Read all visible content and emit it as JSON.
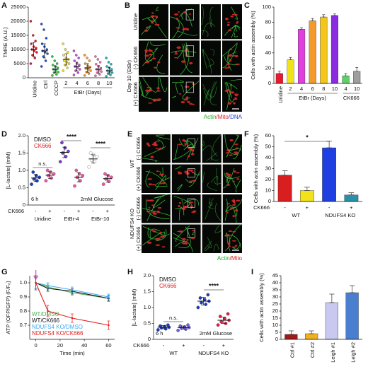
{
  "chart_data": [
    {
      "type": "dot",
      "panel": "A",
      "ylabel": "TMRE (A.U.)",
      "categories": [
        "Uridine",
        "Ctrl",
        "CCCP",
        "2",
        "4",
        "6",
        "8",
        "10"
      ],
      "groups": [
        "EtBr (Days)"
      ],
      "colors": [
        "#e8192c",
        "#1f4fd8",
        "#2ec24a",
        "#f2e21a",
        "#c74fd6",
        "#f39a2b",
        "#e872b8",
        "#26b0b6"
      ],
      "values": [
        [
          5000,
          7000,
          8000,
          9000,
          9500,
          10000,
          10500,
          11000,
          12000,
          13000,
          15000,
          20000
        ],
        [
          4000,
          6000,
          7500,
          8500,
          9000,
          9500,
          10000,
          11000,
          12000,
          14000,
          17000,
          19000
        ],
        [
          800,
          1200,
          1800,
          2000,
          2500,
          3000,
          3500,
          4000,
          4500,
          5000,
          6000,
          7500
        ],
        [
          2500,
          3500,
          4500,
          5000,
          5500,
          6000,
          6500,
          7000,
          8000,
          9000,
          10000,
          12000
        ],
        [
          1000,
          1800,
          2500,
          3000,
          3500,
          4000,
          4500,
          5000,
          6000,
          7000,
          8000,
          9500
        ],
        [
          800,
          1500,
          2000,
          2500,
          3000,
          3300,
          3800,
          4200,
          5000,
          6000,
          7000,
          8000
        ],
        [
          700,
          1200,
          1800,
          2200,
          2600,
          3000,
          3400,
          4000,
          4800,
          5500,
          6500,
          7500
        ],
        [
          500,
          1000,
          1500,
          1800,
          2200,
          2500,
          3000,
          3500,
          4000,
          4800,
          5500,
          7000
        ]
      ],
      "means": [
        10000,
        9500,
        3000,
        6500,
        4000,
        3500,
        3000,
        2500
      ],
      "errors": [
        2500,
        2500,
        1200,
        2000,
        1500,
        1500,
        1300,
        1200
      ],
      "ylim": [
        0,
        25000
      ],
      "yticks": [
        0,
        5000,
        10000,
        15000,
        20000,
        25000
      ]
    },
    {
      "type": "bar",
      "panel": "C",
      "ylabel": "Cells with actin assembly (%)",
      "categories": [
        "Uridine",
        "2",
        "4",
        "6",
        "8",
        "10",
        "4",
        "10"
      ],
      "groups": [
        "EtBr (Days)",
        "CK666"
      ],
      "values": [
        13,
        31,
        71,
        82,
        87,
        89,
        10,
        16
      ],
      "errors": [
        3,
        3,
        2,
        3,
        3,
        2,
        3,
        5
      ],
      "colors": [
        "#e8192c",
        "#f2e21a",
        "#e040e0",
        "#f39a2b",
        "#f5c518",
        "#8a2be2",
        "#5ecf6a",
        "#9e9e9e"
      ],
      "ylim": [
        0,
        100
      ],
      "yticks": [
        0,
        20,
        40,
        60,
        80,
        100
      ]
    },
    {
      "type": "dot",
      "panel": "D",
      "ylabel": "[L-lactate] (mM)",
      "categories": [
        "-",
        "+",
        "-",
        "+",
        "-",
        "+"
      ],
      "row_label": "CK666",
      "groups": [
        "Uridine",
        "EtBr-4",
        "EtBr-10"
      ],
      "legend": [
        {
          "name": "DMSO",
          "color": "#111111"
        },
        {
          "name": "CK666",
          "color": "#e02020"
        }
      ],
      "colors": [
        "#1f3fbf",
        "#e85aa0",
        "#7b3fd0",
        "#e85aa0",
        "#ffffff",
        "#e85aa0"
      ],
      "values": [
        [
          0.6,
          0.7,
          0.75,
          0.8,
          0.85,
          0.95
        ],
        [
          0.7,
          0.78,
          0.85,
          0.9,
          0.95,
          1.0
        ],
        [
          1.25,
          1.4,
          1.5,
          1.55,
          1.65,
          1.8
        ],
        [
          0.55,
          0.7,
          0.8,
          0.85,
          0.9,
          1.0
        ],
        [
          1.1,
          1.25,
          1.3,
          1.4,
          1.45,
          1.5
        ],
        [
          0.6,
          0.68,
          0.75,
          0.8,
          0.85,
          0.9
        ]
      ],
      "means": [
        0.78,
        0.86,
        1.52,
        0.8,
        1.33,
        0.76
      ],
      "errors": [
        0.1,
        0.1,
        0.15,
        0.13,
        0.12,
        0.1
      ],
      "annotations": [
        "n.s.",
        "****",
        "****",
        "6 h",
        "2mM Glucose"
      ],
      "ylim": [
        0,
        2
      ],
      "yticks": [
        0,
        0.5,
        {
          "value": 1,
          "label": "1.0"
        },
        1.5,
        {
          "value": 2,
          "label": "2.0"
        }
      ]
    },
    {
      "type": "bar",
      "panel": "F",
      "ylabel": "Cells with actin assembly (%)",
      "categories": [
        "-",
        "+",
        "-",
        "+"
      ],
      "row_label": "CK666",
      "groups": [
        "WT",
        "NDUFS4 KO"
      ],
      "values": [
        24,
        10,
        49,
        6
      ],
      "errors": [
        4,
        3,
        6,
        2
      ],
      "colors": [
        "#d81e1e",
        "#f2e21a",
        "#1f3fe0",
        "#2a8fa8"
      ],
      "annotations": [
        "*"
      ],
      "ylim": [
        0,
        60
      ],
      "yticks": [
        0,
        10,
        20,
        30,
        40,
        50,
        60
      ]
    },
    {
      "type": "line",
      "panel": "G",
      "ylabel": "ATP (OFP/GFP) (F/F₀)",
      "xlabel": "Time (min)",
      "x": [
        0,
        10,
        30,
        60
      ],
      "series": [
        {
          "name": "WT/DMSO",
          "color": "#4caf50",
          "values": [
            1.0,
            0.97,
            0.93,
            0.89
          ],
          "errors": [
            0.05,
            0.02,
            0.02,
            0.02
          ]
        },
        {
          "name": "WT/CK666",
          "color": "#111111",
          "values": [
            1.0,
            0.96,
            0.94,
            0.89
          ],
          "errors": [
            0.04,
            0.02,
            0.02,
            0.02
          ]
        },
        {
          "name": "NDUFS4 KO/DMSO",
          "color": "#3fa9f5",
          "values": [
            1.0,
            0.98,
            0.95,
            0.9
          ],
          "errors": [
            0.04,
            0.02,
            0.02,
            0.02
          ]
        },
        {
          "name": "NDUFS4 KO/CK666",
          "color": "#e0201e",
          "values": [
            1.0,
            0.8,
            0.75,
            0.7
          ],
          "errors": [
            0.05,
            0.04,
            0.03,
            0.03
          ]
        }
      ],
      "xlim": [
        -5,
        65
      ],
      "xticks": [
        0,
        20,
        40,
        60
      ],
      "ylim": [
        0.6,
        1.05
      ],
      "yticks": [
        0.7,
        0.8,
        0.9,
        {
          "value": 1,
          "label": "1.0"
        }
      ]
    },
    {
      "type": "dot",
      "panel": "H",
      "ylabel": "[L-lactate] (mM)",
      "categories": [
        "-",
        "+",
        "-",
        "+"
      ],
      "row_label": "CK666",
      "groups": [
        "WT",
        "NDUFS4 KO"
      ],
      "legend": [
        {
          "name": "DMSO",
          "color": "#111111"
        },
        {
          "name": "CK666",
          "color": "#e02020"
        }
      ],
      "colors": [
        "#1f3fbf",
        "#7060e0",
        "#1f3fbf",
        "#e02040"
      ],
      "values": [
        [
          0.3,
          0.33,
          0.36,
          0.38,
          0.4,
          0.42,
          0.45
        ],
        [
          0.28,
          0.32,
          0.35,
          0.37,
          0.39,
          0.42,
          0.45
        ],
        [
          1.0,
          1.1,
          1.15,
          1.2,
          1.25,
          1.3,
          1.4
        ],
        [
          0.45,
          0.5,
          0.55,
          0.6,
          0.65,
          0.72,
          0.8
        ]
      ],
      "means": [
        0.38,
        0.37,
        1.2,
        0.6
      ],
      "errors": [
        0.05,
        0.05,
        0.12,
        0.1
      ],
      "annotations": [
        "n.s.",
        "****",
        "6 h",
        "2mM Glucose"
      ],
      "ylim": [
        0,
        2
      ],
      "yticks": [
        0,
        0.5,
        {
          "value": 1,
          "label": "1.0"
        },
        1.5,
        {
          "value": 2,
          "label": "2.0"
        }
      ]
    },
    {
      "type": "bar",
      "panel": "I",
      "ylabel": "Cells with actin assembly (%)",
      "categories": [
        "Ctrl #1",
        "Ctrl #2",
        "Leigh #1",
        "Leigh #2"
      ],
      "values": [
        3.5,
        4,
        26,
        33
      ],
      "errors": [
        2.5,
        2,
        6,
        5
      ],
      "colors": [
        "#a01818",
        "#f0b020",
        "#c8c8f0",
        "#4a7fd0"
      ],
      "ylim": [
        0,
        45
      ],
      "yticks": [
        0,
        5,
        10,
        15,
        20,
        25,
        30,
        35,
        40,
        45
      ]
    }
  ],
  "images": [
    {
      "panel": "B",
      "row_labels": [
        "Uridine",
        "Day 10 (EtBr)",
        "(-) CK666",
        "(+) CK666"
      ],
      "legend": [
        {
          "text": "Actin",
          "color": "#22aa22"
        },
        {
          "text": "/Mito",
          "color": "#e02020"
        },
        {
          "text": "/DNA",
          "color": "#2040e0"
        }
      ]
    },
    {
      "panel": "E",
      "row_labels": [
        "WT",
        "(-) CK666",
        "(+) CK666",
        "NDUFS4 KO",
        "(-) CK666",
        "(+) CK666"
      ],
      "legend": [
        {
          "text": "Actin",
          "color": "#22aa22"
        },
        {
          "text": "/Mito",
          "color": "#e02020"
        }
      ]
    }
  ]
}
